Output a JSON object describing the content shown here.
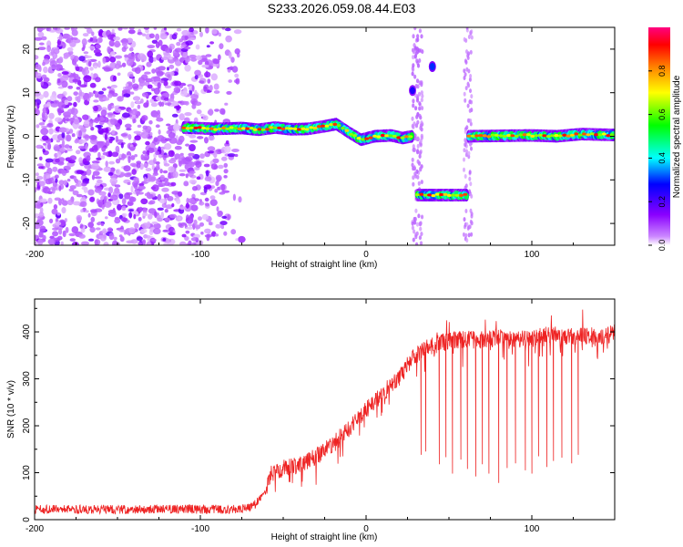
{
  "figure_title": "S233.2026.059.08.44.E03",
  "colorbar": {
    "label": "Normalized spectral amplitude",
    "ticks": [
      "0.0",
      "0.2",
      "0.4",
      "0.6",
      "0.8"
    ],
    "colors": [
      "#ffffff",
      "#8a00ff",
      "#0000ff",
      "#00ffff",
      "#00ff00",
      "#ffff00",
      "#ff8000",
      "#ff0000",
      "#ff0080"
    ]
  },
  "line_color": "#ee2222",
  "chart_data": [
    {
      "type": "heatmap",
      "title": "S233.2026.059.08.44.E03",
      "xlabel": "Height of straight line (km)",
      "ylabel": "Frequency (Hz)",
      "xlim": [
        -200,
        150
      ],
      "ylim": [
        -25,
        25
      ],
      "xticks": [
        -200,
        -100,
        0,
        100
      ],
      "xtick_labels": [
        "-200",
        "-100",
        "0",
        "100"
      ],
      "yticks": [
        -20,
        -10,
        0,
        10,
        20
      ],
      "ytick_labels": [
        "-20",
        "-10",
        "0",
        "10",
        "20"
      ],
      "value_range": [
        0,
        1
      ],
      "noise_region": {
        "x_from": -200,
        "x_to": -75,
        "density_falls_off_after": -110
      },
      "carrier_trace": [
        {
          "x": -110,
          "y": 2.0
        },
        {
          "x": -90,
          "y": 1.7
        },
        {
          "x": -75,
          "y": 1.9
        },
        {
          "x": -65,
          "y": 1.5
        },
        {
          "x": -55,
          "y": 2.0
        },
        {
          "x": -45,
          "y": 1.6
        },
        {
          "x": -35,
          "y": 1.7
        },
        {
          "x": -25,
          "y": 2.3
        },
        {
          "x": -18,
          "y": 2.8
        },
        {
          "x": -10,
          "y": 0.8
        },
        {
          "x": -3,
          "y": -0.8
        },
        {
          "x": 5,
          "y": 0.0
        },
        {
          "x": 15,
          "y": 0.2
        },
        {
          "x": 22,
          "y": -0.4
        },
        {
          "x": 28,
          "y": 0.0
        }
      ],
      "carrier_trace_after_gap": [
        {
          "x": 62,
          "y": 0.0
        },
        {
          "x": 80,
          "y": 0.1
        },
        {
          "x": 100,
          "y": 0.2
        },
        {
          "x": 115,
          "y": 0.0
        },
        {
          "x": 130,
          "y": 0.5
        },
        {
          "x": 150,
          "y": 0.3
        }
      ],
      "shifted_segment": {
        "x_from": 31,
        "x_to": 61,
        "y": -13.5
      },
      "isolated_features": [
        {
          "x": 28,
          "y": 10.5,
          "value": 0.25
        },
        {
          "x": 40,
          "y": 16.0,
          "value": 0.3
        }
      ]
    },
    {
      "type": "line",
      "xlabel": "Height of straight line (km)",
      "ylabel": "SNR (10 * v/v)",
      "xlim": [
        -200,
        150
      ],
      "ylim": [
        0,
        470
      ],
      "xticks": [
        -200,
        -100,
        0,
        100
      ],
      "xtick_labels": [
        "-200",
        "-100",
        "0",
        "100"
      ],
      "yticks": [
        0,
        100,
        200,
        300,
        400
      ],
      "ytick_labels": [
        "0",
        "100",
        "200",
        "300",
        "400"
      ],
      "series": [
        {
          "name": "SNR",
          "envelope_x": [
            -200,
            -100,
            -75,
            -68,
            -62,
            -58,
            -50,
            -40,
            -30,
            -20,
            -10,
            0,
            10,
            20,
            25,
            30,
            35,
            40,
            50,
            60,
            70,
            80,
            90,
            100,
            110,
            120,
            130,
            140,
            150
          ],
          "envelope_y": [
            22,
            22,
            22,
            30,
            48,
            95,
            110,
            118,
            135,
            160,
            195,
            235,
            270,
            300,
            330,
            350,
            362,
            370,
            382,
            385,
            382,
            388,
            380,
            390,
            392,
            388,
            392,
            388,
            398
          ],
          "noise_amplitude": 12,
          "dropouts": [
            {
              "x": 33,
              "y": 138
            },
            {
              "x": 36,
              "y": 145
            },
            {
              "x": 44,
              "y": 118
            },
            {
              "x": 48,
              "y": 133
            },
            {
              "x": 52,
              "y": 98
            },
            {
              "x": 57,
              "y": 128
            },
            {
              "x": 61,
              "y": 108
            },
            {
              "x": 66,
              "y": 92
            },
            {
              "x": 70,
              "y": 118
            },
            {
              "x": 74,
              "y": 98
            },
            {
              "x": 80,
              "y": 78
            },
            {
              "x": 85,
              "y": 110
            },
            {
              "x": 90,
              "y": 120
            },
            {
              "x": 96,
              "y": 105
            },
            {
              "x": 100,
              "y": 98
            },
            {
              "x": 104,
              "y": 135
            },
            {
              "x": 109,
              "y": 112
            },
            {
              "x": 113,
              "y": 125
            },
            {
              "x": 118,
              "y": 132
            },
            {
              "x": 124,
              "y": 120
            },
            {
              "x": 128,
              "y": 138
            }
          ]
        }
      ]
    }
  ]
}
